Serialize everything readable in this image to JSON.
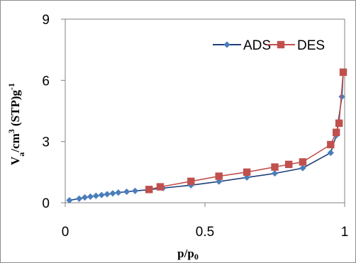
{
  "chart_data": {
    "type": "scatter",
    "title": "",
    "xlabel_main": "p/p",
    "xlabel_sub": "0",
    "ylabel_parts": [
      {
        "text": "V",
        "style": "main"
      },
      {
        "text": "a",
        "style": "sub"
      },
      {
        "text": "/cm",
        "style": "main"
      },
      {
        "text": "3",
        "style": "sup"
      },
      {
        "text": " (STP)g",
        "style": "main"
      },
      {
        "text": "-1",
        "style": "sup"
      }
    ],
    "xlim": [
      0,
      1
    ],
    "ylim": [
      0,
      9
    ],
    "x_ticks": [
      "0",
      "0.5",
      "1"
    ],
    "x_tick_values": [
      0,
      0.5,
      1
    ],
    "y_ticks": [
      "0",
      "3",
      "6",
      "9"
    ],
    "y_tick_values": [
      0,
      3,
      6,
      9
    ],
    "grid": false,
    "legend_position": "top-right",
    "series": [
      {
        "name": "ADS",
        "color": "#4a7ebb",
        "line_color": "#1f3f7a",
        "marker": "diamond",
        "points": [
          [
            0.015,
            0.12
          ],
          [
            0.05,
            0.2
          ],
          [
            0.07,
            0.26
          ],
          [
            0.09,
            0.3
          ],
          [
            0.11,
            0.34
          ],
          [
            0.13,
            0.38
          ],
          [
            0.15,
            0.42
          ],
          [
            0.17,
            0.46
          ],
          [
            0.19,
            0.5
          ],
          [
            0.22,
            0.54
          ],
          [
            0.25,
            0.58
          ],
          [
            0.3,
            0.64
          ],
          [
            0.35,
            0.72
          ],
          [
            0.45,
            0.86
          ],
          [
            0.55,
            1.04
          ],
          [
            0.65,
            1.24
          ],
          [
            0.75,
            1.44
          ],
          [
            0.85,
            1.7
          ],
          [
            0.95,
            2.45
          ],
          [
            0.97,
            3.3
          ],
          [
            0.99,
            5.2
          ],
          [
            0.995,
            6.4
          ]
        ]
      },
      {
        "name": "DES",
        "color": "#c0504d",
        "line_color": "#c0504d",
        "marker": "square",
        "points": [
          [
            0.995,
            6.4
          ],
          [
            0.98,
            3.9
          ],
          [
            0.97,
            3.45
          ],
          [
            0.95,
            2.85
          ],
          [
            0.85,
            2.0
          ],
          [
            0.8,
            1.88
          ],
          [
            0.75,
            1.75
          ],
          [
            0.65,
            1.5
          ],
          [
            0.55,
            1.3
          ],
          [
            0.45,
            1.05
          ],
          [
            0.34,
            0.78
          ],
          [
            0.3,
            0.65
          ]
        ]
      }
    ]
  }
}
